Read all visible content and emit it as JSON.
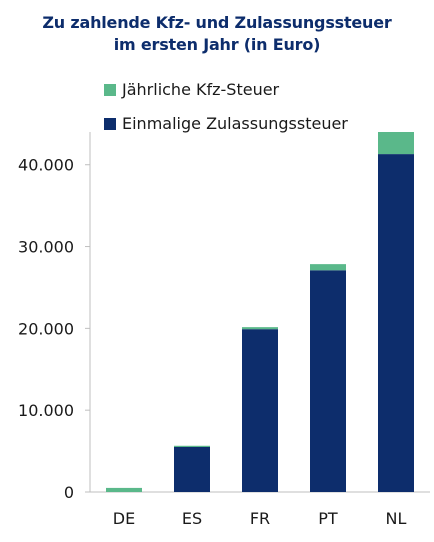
{
  "chart_data": {
    "type": "bar",
    "stacked": true,
    "title_lines": [
      "Zu zahlende Kfz- und Zulassungssteuer",
      "im ersten Jahr (in Euro)"
    ],
    "categories": [
      "DE",
      "ES",
      "FR",
      "PT",
      "NL"
    ],
    "series": [
      {
        "name": "Einmalige Zulassungssteuer",
        "color": "#0d2d6c",
        "values": [
          0,
          5500,
          19900,
          27100,
          41300
        ]
      },
      {
        "name": "Jährliche Kfz-Steuer",
        "color": "#5ab88a",
        "values": [
          500,
          150,
          250,
          750,
          2700
        ]
      }
    ],
    "legend_order": [
      "Jährliche Kfz-Steuer",
      "Einmalige Zulassungssteuer"
    ],
    "ylim": [
      0,
      44000
    ],
    "yticks": [
      0,
      10000,
      20000,
      30000,
      40000
    ],
    "ytick_labels": [
      "0",
      "10.000",
      "20.000",
      "30.000",
      "40.000"
    ],
    "grid": false,
    "legend_placement": "top-left",
    "xlabel": "",
    "ylabel": ""
  }
}
